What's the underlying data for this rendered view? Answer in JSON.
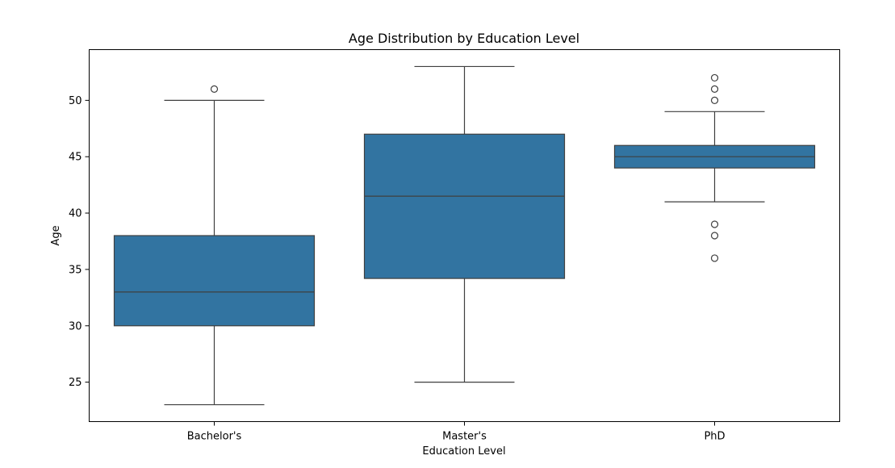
{
  "chart_data": {
    "type": "box",
    "title": "Age Distribution by Education Level",
    "xlabel": "Education Level",
    "ylabel": "Age",
    "ylim": [
      21.5,
      54.5
    ],
    "yticks": [
      25,
      30,
      35,
      40,
      45,
      50
    ],
    "grid": false,
    "box_color": "#3274a1",
    "line_color": "#3f3f3f",
    "categories": [
      "Bachelor's",
      "Master's",
      "PhD"
    ],
    "boxes": [
      {
        "category": "Bachelor's",
        "whisker_low": 23,
        "q1": 30,
        "median": 33,
        "q3": 38,
        "whisker_high": 50,
        "outliers": [
          51
        ]
      },
      {
        "category": "Master's",
        "whisker_low": 25,
        "q1": 34.2,
        "median": 41.5,
        "q3": 47,
        "whisker_high": 53,
        "outliers": []
      },
      {
        "category": "PhD",
        "whisker_low": 41,
        "q1": 44,
        "median": 45,
        "q3": 46,
        "whisker_high": 49,
        "outliers": [
          52,
          51,
          50,
          39,
          38,
          36
        ]
      }
    ]
  }
}
